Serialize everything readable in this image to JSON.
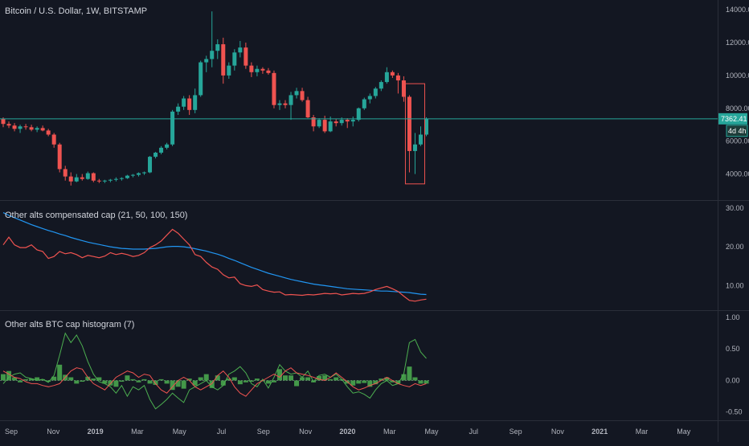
{
  "colors": {
    "background": "#131722",
    "up": "#26a69a",
    "down": "#ef5350",
    "ma_line": "#2196f3",
    "price_line": "#26a69a",
    "hist_up": "#4caf50",
    "hist_down": "#4caf50",
    "osc_green": "#4caf50",
    "osc_red": "#ef5350",
    "grid": "#363a45",
    "text": "#b2b5be"
  },
  "header": {
    "symbol_title": "Bitcoin / U.S. Dollar, 1W, BITSTAMP",
    "current_price": "7362.41",
    "countdown": "4d 4h"
  },
  "chart_data": [
    {
      "type": "candlestick",
      "title": "Bitcoin / U.S. Dollar, 1W, BITSTAMP",
      "y_ticks": [
        "4000.00",
        "6000.00",
        "8000.00",
        "10000.00",
        "12000.00",
        "14000.00"
      ],
      "ylim": [
        3000,
        14300
      ],
      "x_ticks": [
        "Sep",
        "Nov",
        "2019",
        "Mar",
        "May",
        "Jul",
        "Sep",
        "Nov",
        "2020",
        "Mar",
        "May",
        "Jul",
        "Sep",
        "Nov",
        "2021",
        "Mar",
        "May"
      ],
      "candles": [
        [
          7350,
          7450,
          6850,
          7050
        ],
        [
          7050,
          7200,
          6800,
          6950
        ],
        [
          6950,
          7100,
          6600,
          6750
        ],
        [
          6750,
          7000,
          6500,
          6900
        ],
        [
          6900,
          7050,
          6700,
          6850
        ],
        [
          6850,
          7000,
          6600,
          6700
        ],
        [
          6700,
          6900,
          6550,
          6800
        ],
        [
          6800,
          6950,
          6600,
          6650
        ],
        [
          6650,
          6750,
          6300,
          6400
        ],
        [
          6400,
          6500,
          5600,
          5800
        ],
        [
          5800,
          5900,
          4100,
          4300
        ],
        [
          4300,
          4500,
          3600,
          3850
        ],
        [
          3850,
          4100,
          3300,
          3550
        ],
        [
          3550,
          4000,
          3500,
          3800
        ],
        [
          3800,
          4000,
          3600,
          3700
        ],
        [
          3700,
          4150,
          3650,
          4050
        ],
        [
          4050,
          4100,
          3500,
          3600
        ],
        [
          3600,
          3700,
          3450,
          3550
        ],
        [
          3550,
          3650,
          3450,
          3600
        ],
        [
          3600,
          3700,
          3500,
          3650
        ],
        [
          3650,
          3800,
          3550,
          3700
        ],
        [
          3700,
          3800,
          3600,
          3750
        ],
        [
          3750,
          3950,
          3700,
          3900
        ],
        [
          3900,
          4000,
          3800,
          3950
        ],
        [
          3950,
          4100,
          3850,
          4050
        ],
        [
          4050,
          4150,
          3950,
          4100
        ],
        [
          4100,
          5100,
          4050,
          5050
        ],
        [
          5050,
          5350,
          4950,
          5300
        ],
        [
          5300,
          5700,
          5200,
          5600
        ],
        [
          5600,
          5900,
          5500,
          5800
        ],
        [
          5800,
          7900,
          5700,
          7800
        ],
        [
          7800,
          8300,
          7600,
          8100
        ],
        [
          8100,
          8750,
          7900,
          8600
        ],
        [
          8600,
          8800,
          7600,
          7900
        ],
        [
          7900,
          9200,
          7700,
          8800
        ],
        [
          8800,
          10900,
          8700,
          10800
        ],
        [
          10800,
          11200,
          10200,
          11000
        ],
        [
          11000,
          13900,
          10500,
          11500
        ],
        [
          11500,
          12200,
          11000,
          11900
        ],
        [
          11900,
          12300,
          9500,
          10000
        ],
        [
          10000,
          10800,
          9800,
          10600
        ],
        [
          10600,
          11600,
          10300,
          11400
        ],
        [
          11400,
          12100,
          11100,
          11700
        ],
        [
          11700,
          12000,
          10400,
          10600
        ],
        [
          10600,
          10800,
          9900,
          10200
        ],
        [
          10200,
          10600,
          9950,
          10400
        ],
        [
          10400,
          10500,
          10100,
          10300
        ],
        [
          10300,
          10450,
          10050,
          10150
        ],
        [
          10150,
          10300,
          8000,
          8200
        ],
        [
          8200,
          8500,
          7900,
          8300
        ],
        [
          8300,
          8500,
          8000,
          8200
        ],
        [
          8200,
          9000,
          7300,
          8800
        ],
        [
          8800,
          9250,
          8600,
          9050
        ],
        [
          9050,
          9250,
          8400,
          8500
        ],
        [
          8500,
          8700,
          7400,
          7450
        ],
        [
          7450,
          7600,
          6600,
          6900
        ],
        [
          6900,
          7400,
          6800,
          7300
        ],
        [
          7300,
          7550,
          6500,
          6600
        ],
        [
          6600,
          7500,
          6550,
          7200
        ],
        [
          7200,
          7350,
          6900,
          7100
        ],
        [
          7100,
          7450,
          6950,
          7300
        ],
        [
          7300,
          7400,
          6800,
          7200
        ],
        [
          7200,
          7500,
          6900,
          7300
        ],
        [
          7300,
          8050,
          7200,
          8000
        ],
        [
          8000,
          8650,
          7900,
          8550
        ],
        [
          8550,
          8900,
          8300,
          8750
        ],
        [
          8750,
          9300,
          8600,
          9200
        ],
        [
          9200,
          9700,
          9050,
          9600
        ],
        [
          9600,
          10500,
          9500,
          10200
        ],
        [
          10200,
          10300,
          9850,
          10000
        ],
        [
          10000,
          10150,
          8900,
          9700
        ],
        [
          9700,
          9950,
          8400,
          8700
        ],
        [
          8700,
          8800,
          4100,
          5400
        ],
        [
          5400,
          6500,
          4000,
          5800
        ],
        [
          5800,
          6900,
          5700,
          6400
        ],
        [
          6400,
          7450,
          6300,
          7362
        ]
      ],
      "highlight_box": {
        "from_index": 72,
        "to_index": 74,
        "low": 3400,
        "high": 9500
      }
    },
    {
      "type": "line",
      "title": "Other alts compensated cap (21, 50, 100, 150)",
      "y_ticks": [
        "10.00",
        "20.00",
        "30.00"
      ],
      "ylim": [
        4.5,
        31
      ],
      "series": [
        {
          "color": "#2196f3",
          "values": [
            28.8,
            28.1,
            27.5,
            26.9,
            26.3,
            25.7,
            25.2,
            24.7,
            24.2,
            23.8,
            23.3,
            22.9,
            22.4,
            22.0,
            21.6,
            21.2,
            20.9,
            20.6,
            20.3,
            20.0,
            19.8,
            19.6,
            19.5,
            19.4,
            19.4,
            19.4,
            19.5,
            19.6,
            19.8,
            20.0,
            20.1,
            20.1,
            20.0,
            19.8,
            19.5,
            19.2,
            18.9,
            18.5,
            18.1,
            17.6,
            17.0,
            16.5,
            15.9,
            15.3,
            14.7,
            14.2,
            13.7,
            13.2,
            12.8,
            12.4,
            12.0,
            11.6,
            11.3,
            11.0,
            10.7,
            10.4,
            10.2,
            10.0,
            9.8,
            9.6,
            9.4,
            9.2,
            9.1,
            9.0,
            8.9,
            8.8,
            8.7,
            8.6,
            8.6,
            8.5,
            8.4,
            8.3,
            8.2,
            8.0,
            7.8,
            7.7
          ]
        },
        {
          "color": "#ef5350",
          "values": [
            20.5,
            22.5,
            20.5,
            19.8,
            19.8,
            20.5,
            19.2,
            18.8,
            17.0,
            17.5,
            18.8,
            18.2,
            18.5,
            18.0,
            17.2,
            17.8,
            17.5,
            17.2,
            17.6,
            18.5,
            18.0,
            18.3,
            18.0,
            17.5,
            17.8,
            18.5,
            19.8,
            20.5,
            21.5,
            23.0,
            24.5,
            23.5,
            22.0,
            20.5,
            18.0,
            17.5,
            16.0,
            14.8,
            14.2,
            12.8,
            12.0,
            12.2,
            10.5,
            10.0,
            9.8,
            10.2,
            9.0,
            8.6,
            8.3,
            8.4,
            7.6,
            7.7,
            7.6,
            7.5,
            7.7,
            7.6,
            7.8,
            8.0,
            7.9,
            8.0,
            7.6,
            7.8,
            8.0,
            7.9,
            8.0,
            8.4,
            9.0,
            9.4,
            9.8,
            9.2,
            8.5,
            7.3,
            6.2,
            6.0,
            6.3,
            6.5
          ]
        }
      ]
    },
    {
      "type": "histogram",
      "title": "Other alts BTC cap histogram (7)",
      "y_ticks": [
        "-0.50",
        "0.00",
        "0.50",
        "1.00"
      ],
      "ylim": [
        -0.58,
        1.05
      ],
      "bars": [
        0.1,
        0.15,
        0.05,
        -0.03,
        0.02,
        0.03,
        0.05,
        0.02,
        -0.02,
        0.06,
        0.25,
        0.09,
        0.05,
        -0.05,
        -0.02,
        0.06,
        0.03,
        0.05,
        -0.05,
        -0.08,
        -0.1,
        -0.02,
        0.08,
        0.02,
        -0.03,
        0.02,
        -0.05,
        -0.07,
        0.02,
        -0.05,
        -0.15,
        -0.1,
        -0.13,
        0.03,
        -0.08,
        0.05,
        0.1,
        -0.12,
        0.08,
        -0.08,
        0.03,
        0.05,
        -0.06,
        -0.03,
        -0.02,
        0.03,
        0.0,
        -0.05,
        -0.03,
        0.18,
        0.08,
        0.08,
        -0.09,
        0.05,
        0.05,
        -0.03,
        0.07,
        0.08,
        0.02,
        0.05,
        0.02,
        -0.05,
        -0.08,
        -0.05,
        -0.04,
        -0.1,
        -0.06,
        0.03,
        0.05,
        -0.03,
        -0.05,
        0.1,
        0.22,
        0.05,
        -0.05,
        -0.05
      ],
      "series": [
        {
          "color": "#4caf50",
          "values": [
            -0.05,
            0.05,
            0.1,
            0.12,
            0.05,
            0.03,
            0.0,
            0.02,
            -0.03,
            0.08,
            0.4,
            0.75,
            0.6,
            0.72,
            0.55,
            0.3,
            0.1,
            -0.02,
            -0.05,
            -0.1,
            -0.2,
            -0.08,
            -0.25,
            -0.1,
            -0.15,
            -0.08,
            -0.3,
            -0.45,
            -0.38,
            -0.3,
            -0.2,
            -0.28,
            -0.35,
            -0.15,
            -0.1,
            -0.05,
            0.0,
            -0.1,
            -0.15,
            -0.08,
            0.1,
            0.15,
            0.22,
            0.12,
            -0.05,
            -0.1,
            0.02,
            -0.12,
            0.05,
            0.25,
            0.15,
            0.1,
            0.12,
            0.05,
            0.15,
            -0.02,
            0.08,
            0.1,
            0.05,
            0.1,
            0.02,
            -0.1,
            -0.2,
            -0.18,
            -0.22,
            -0.28,
            -0.15,
            -0.05,
            0.0,
            -0.08,
            -0.05,
            0.1,
            0.6,
            0.65,
            0.45,
            0.35
          ]
        },
        {
          "color": "#ef5350",
          "values": [
            0.15,
            0.1,
            0.05,
            0.03,
            -0.02,
            -0.05,
            -0.05,
            -0.08,
            -0.1,
            -0.08,
            -0.05,
            0.05,
            0.15,
            0.2,
            0.18,
            0.05,
            -0.05,
            -0.1,
            -0.15,
            -0.05,
            0.05,
            0.1,
            0.15,
            0.12,
            0.05,
            0.1,
            0.08,
            -0.05,
            -0.15,
            -0.2,
            -0.1,
            0.0,
            0.05,
            0.0,
            -0.1,
            -0.15,
            -0.1,
            -0.05,
            0.08,
            0.15,
            0.05,
            -0.1,
            -0.2,
            -0.25,
            -0.15,
            -0.05,
            0.0,
            0.05,
            0.1,
            0.05,
            0.15,
            0.2,
            0.12,
            0.1,
            0.08,
            0.05,
            0.02,
            0.0,
            0.05,
            0.12,
            0.05,
            -0.02,
            -0.1,
            -0.15,
            -0.12,
            -0.08,
            -0.05,
            0.0,
            0.05,
            0.0,
            -0.05,
            -0.08,
            -0.1,
            -0.05,
            -0.08,
            -0.05
          ]
        }
      ]
    }
  ]
}
